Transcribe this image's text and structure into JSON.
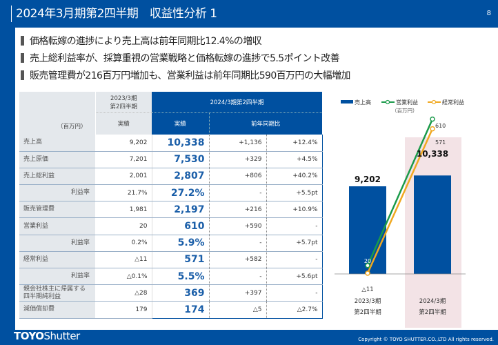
{
  "header": {
    "title": "2024年3月期第2四半期　収益性分析 1",
    "page": "8"
  },
  "bullets": [
    "価格転嫁の進捗により売上高は前年同期比12.4%の増収",
    "売上総利益率が、採算重視の営業戦略と価格転嫁の進捗で5.5ポイント改善",
    "販売管理費が216百万円増加も、営業利益は前年同期比590百万円の大幅増加"
  ],
  "table": {
    "unit": "（百万円）",
    "prev_period": "2023/3期\n第2四半期",
    "cur_period": "2024/3期第2四半期",
    "actual": "実績",
    "yoy": "前年同期比",
    "rows": [
      {
        "label": "売上高",
        "prev": "9,202",
        "cur": "10,338",
        "diff": "+1,136",
        "pct": "+12.4%"
      },
      {
        "label": "売上原価",
        "prev": "7,201",
        "cur": "7,530",
        "diff": "+329",
        "pct": "+4.5%"
      },
      {
        "label": "売上総利益",
        "prev": "2,001",
        "cur": "2,807",
        "diff": "+806",
        "pct": "+40.2%"
      },
      {
        "label": "利益率",
        "prev": "21.7%",
        "cur": "27.2%",
        "diff": "-",
        "pct": "+5.5pt",
        "indent": true
      },
      {
        "label": "販売管理費",
        "prev": "1,981",
        "cur": "2,197",
        "diff": "+216",
        "pct": "+10.9%"
      },
      {
        "label": "営業利益",
        "prev": "20",
        "cur": "610",
        "diff": "+590",
        "pct": "-"
      },
      {
        "label": "利益率",
        "prev": "0.2%",
        "cur": "5.9%",
        "diff": "-",
        "pct": "+5.7pt",
        "indent": true
      },
      {
        "label": "経常利益",
        "prev": "△11",
        "cur": "571",
        "diff": "+582",
        "pct": "-"
      },
      {
        "label": "利益率",
        "prev": "△0.1%",
        "cur": "5.5%",
        "diff": "-",
        "pct": "+5.6pt",
        "indent": true
      },
      {
        "label": "親会社株主に帰属する\n四半期純利益",
        "prev": "△28",
        "cur": "369",
        "diff": "+397",
        "pct": "-"
      },
      {
        "label": "減価償却費",
        "prev": "179",
        "cur": "174",
        "diff": "△5",
        "pct": "△2.7%"
      }
    ]
  },
  "chart_data": {
    "type": "bar",
    "unit": "（百万円）",
    "categories": [
      "2023/3期\n第2四半期",
      "2024/3期\n第2四半期"
    ],
    "series": [
      {
        "name": "売上高",
        "kind": "bar",
        "values": [
          9202,
          10338
        ],
        "labels": [
          "9,202",
          "10,338"
        ],
        "color": "#0050a0"
      },
      {
        "name": "営業利益",
        "kind": "line",
        "values": [
          20,
          610
        ],
        "labels": [
          "20",
          "610"
        ],
        "color": "#1a9a4a"
      },
      {
        "name": "経常利益",
        "kind": "line",
        "values": [
          -11,
          571
        ],
        "labels": [
          "△11",
          "571"
        ],
        "color": "#f0a820"
      }
    ],
    "highlight_color": "#f3e3e6"
  },
  "footer": {
    "logo": "TOYOShutter",
    "logo_bold": "TOYO",
    "logo_rest": "Shutter",
    "copyright": "Copyright © TOYO SHUTTER.CO.,LTD All rights reserved."
  }
}
